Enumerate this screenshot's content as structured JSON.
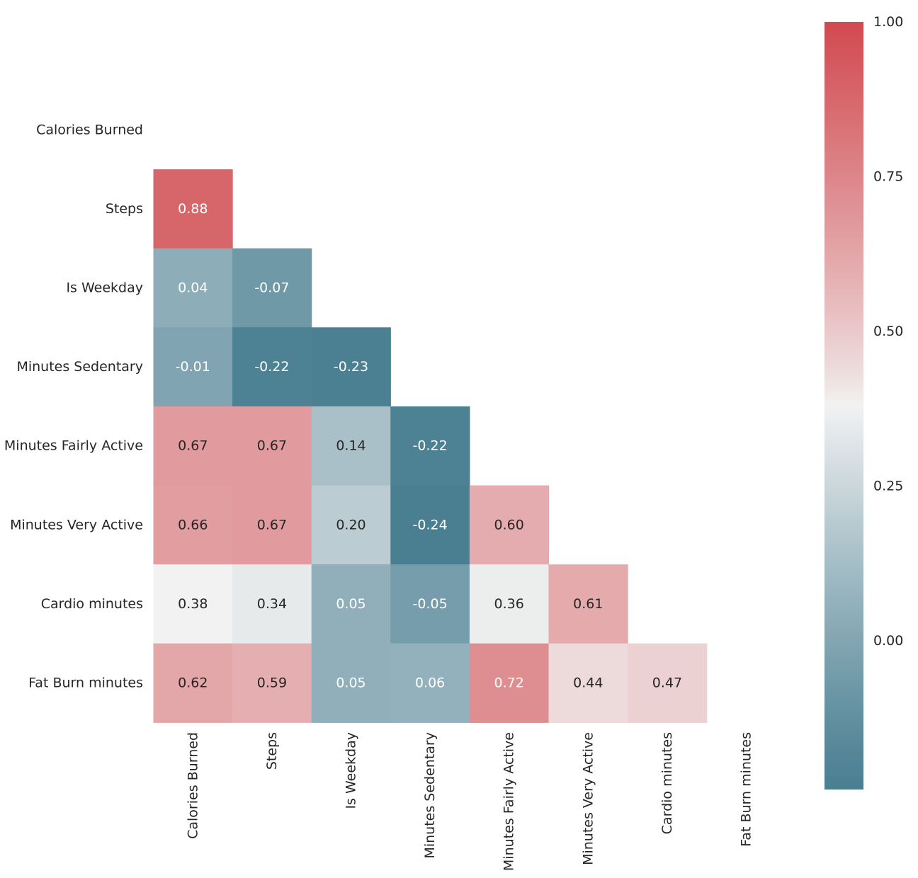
{
  "chart_data": {
    "type": "heatmap",
    "title": "",
    "xlabel": "",
    "ylabel": "",
    "variables": [
      "Calories Burned",
      "Steps",
      "Is Weekday",
      "Minutes Sedentary",
      "Minutes Fairly Active",
      "Minutes Very Active",
      "Cardio minutes",
      "Fat Burn minutes"
    ],
    "mask": "upper-triangle-including-diagonal",
    "cells": [
      {
        "row": 1,
        "col": 0,
        "value": 0.88,
        "label": "0.88"
      },
      {
        "row": 2,
        "col": 0,
        "value": 0.04,
        "label": "0.04"
      },
      {
        "row": 2,
        "col": 1,
        "value": -0.07,
        "label": "-0.07"
      },
      {
        "row": 3,
        "col": 0,
        "value": -0.01,
        "label": "-0.01"
      },
      {
        "row": 3,
        "col": 1,
        "value": -0.22,
        "label": "-0.22"
      },
      {
        "row": 3,
        "col": 2,
        "value": -0.23,
        "label": "-0.23"
      },
      {
        "row": 4,
        "col": 0,
        "value": 0.67,
        "label": "0.67"
      },
      {
        "row": 4,
        "col": 1,
        "value": 0.67,
        "label": "0.67"
      },
      {
        "row": 4,
        "col": 2,
        "value": 0.14,
        "label": "0.14"
      },
      {
        "row": 4,
        "col": 3,
        "value": -0.22,
        "label": "-0.22"
      },
      {
        "row": 5,
        "col": 0,
        "value": 0.66,
        "label": "0.66"
      },
      {
        "row": 5,
        "col": 1,
        "value": 0.67,
        "label": "0.67"
      },
      {
        "row": 5,
        "col": 2,
        "value": 0.2,
        "label": "0.20"
      },
      {
        "row": 5,
        "col": 3,
        "value": -0.24,
        "label": "-0.24"
      },
      {
        "row": 5,
        "col": 4,
        "value": 0.6,
        "label": "0.60"
      },
      {
        "row": 6,
        "col": 0,
        "value": 0.38,
        "label": "0.38"
      },
      {
        "row": 6,
        "col": 1,
        "value": 0.34,
        "label": "0.34"
      },
      {
        "row": 6,
        "col": 2,
        "value": 0.05,
        "label": "0.05"
      },
      {
        "row": 6,
        "col": 3,
        "value": -0.05,
        "label": "-0.05"
      },
      {
        "row": 6,
        "col": 4,
        "value": 0.36,
        "label": "0.36"
      },
      {
        "row": 6,
        "col": 5,
        "value": 0.61,
        "label": "0.61"
      },
      {
        "row": 7,
        "col": 0,
        "value": 0.62,
        "label": "0.62"
      },
      {
        "row": 7,
        "col": 1,
        "value": 0.59,
        "label": "0.59"
      },
      {
        "row": 7,
        "col": 2,
        "value": 0.05,
        "label": "0.05"
      },
      {
        "row": 7,
        "col": 3,
        "value": 0.06,
        "label": "0.06"
      },
      {
        "row": 7,
        "col": 4,
        "value": 0.72,
        "label": "0.72"
      },
      {
        "row": 7,
        "col": 5,
        "value": 0.44,
        "label": "0.44"
      },
      {
        "row": 7,
        "col": 6,
        "value": 0.47,
        "label": "0.47"
      }
    ],
    "colorbar": {
      "range": [
        -0.24,
        1.0
      ],
      "ticks": [
        0.0,
        0.25,
        0.5,
        0.75,
        1.0
      ],
      "tick_labels": [
        "0.00",
        "0.25",
        "0.50",
        "0.75",
        "1.00"
      ],
      "colormap": "diverging blue-white-red",
      "colors": {
        "low": "#4a7f92",
        "mid": "#f2f2f2",
        "high": "#d14a50"
      },
      "placement": "right"
    },
    "grid": false
  }
}
